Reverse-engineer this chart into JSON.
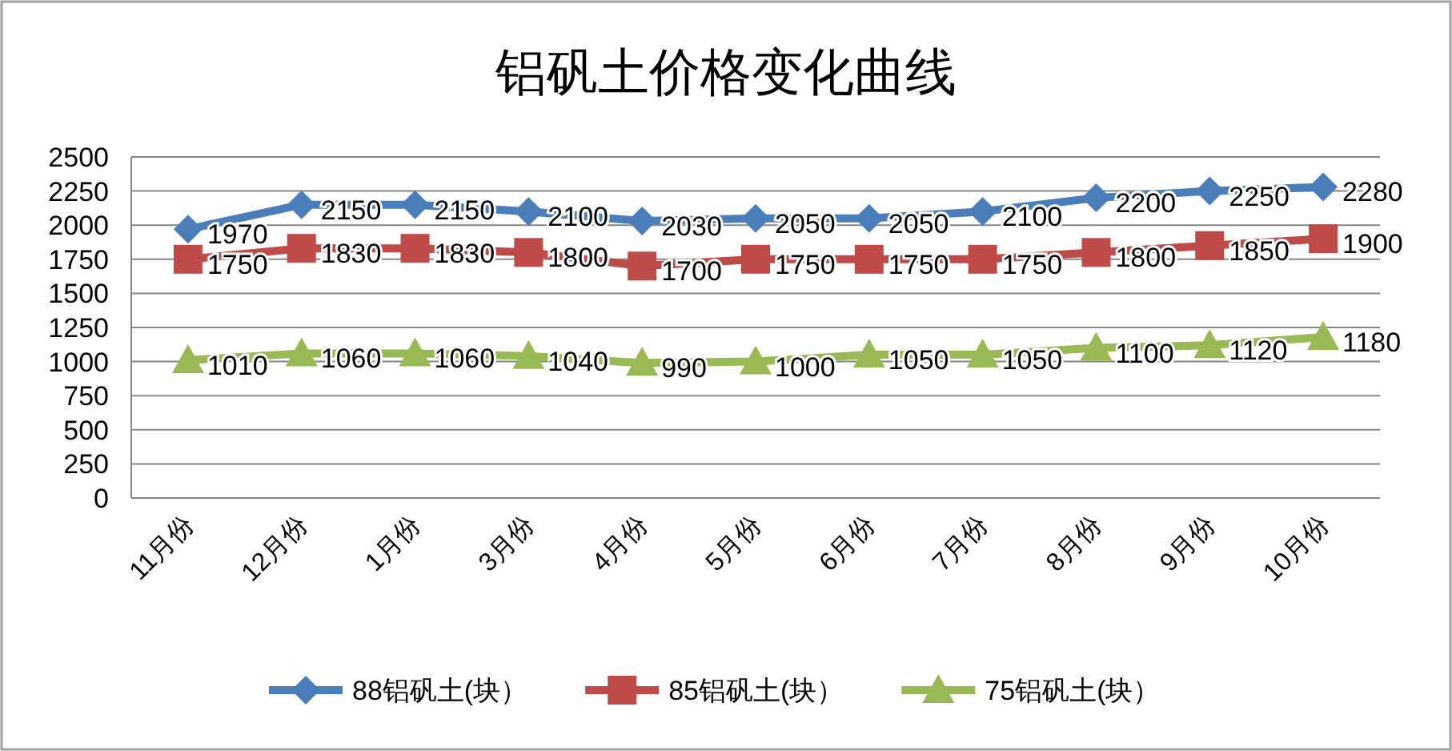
{
  "chart_data": {
    "type": "line",
    "title": "铝矾土价格变化曲线",
    "categories": [
      "11月份",
      "12月份",
      "1月份",
      "3月份",
      "4月份",
      "5月份",
      "6月份",
      "7月份",
      "8月份",
      "9月份",
      "10月份"
    ],
    "series": [
      {
        "name": "88铝矾土(块）",
        "color": "#4a7ebb",
        "marker": "diamond",
        "values": [
          1970,
          2150,
          2150,
          2100,
          2030,
          2050,
          2050,
          2100,
          2200,
          2250,
          2280
        ]
      },
      {
        "name": "85铝矾土(块）",
        "color": "#be4b48",
        "marker": "square",
        "values": [
          1750,
          1830,
          1830,
          1800,
          1700,
          1750,
          1750,
          1750,
          1800,
          1850,
          1900
        ]
      },
      {
        "name": "75铝矾土(块）",
        "color": "#98b954",
        "marker": "triangle",
        "values": [
          1010,
          1060,
          1060,
          1040,
          990,
          1000,
          1050,
          1050,
          1100,
          1120,
          1180
        ]
      }
    ],
    "ylim": [
      0,
      2500
    ],
    "yticks": [
      0,
      250,
      500,
      750,
      1000,
      1250,
      1500,
      1750,
      2000,
      2250,
      2500
    ],
    "grid": "y",
    "legend": "bottom",
    "data_labels": true,
    "line_style": "solid"
  }
}
